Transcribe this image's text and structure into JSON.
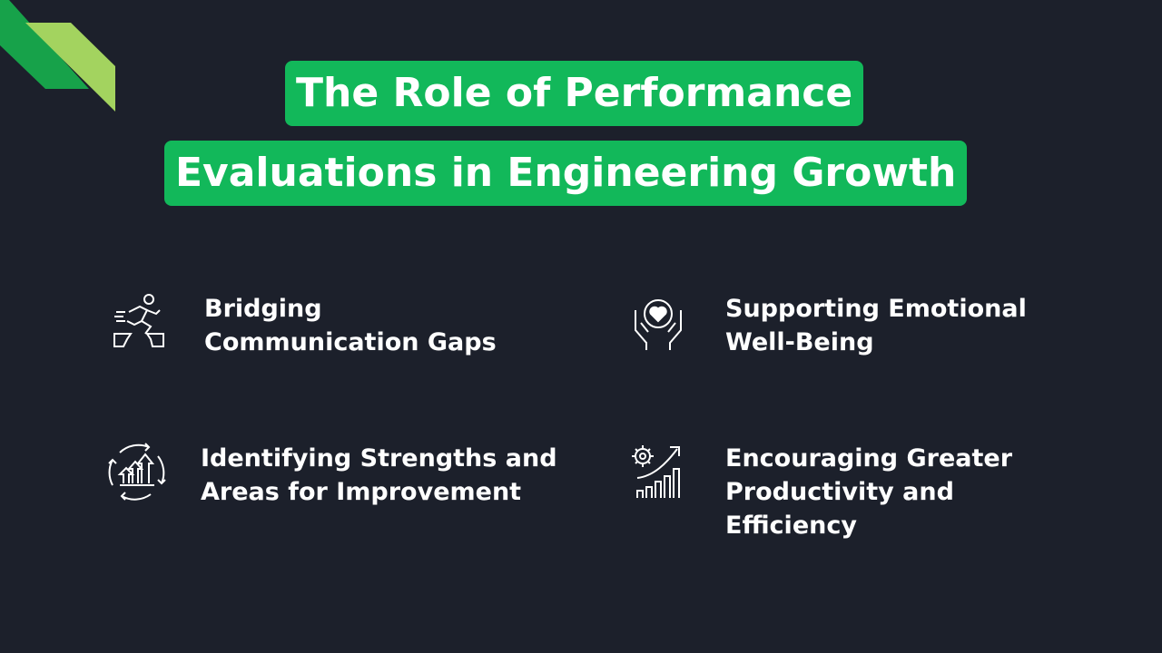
{
  "title": {
    "line1": "The Role of Performance",
    "line2": "Evaluations in Engineering Growth"
  },
  "colors": {
    "background": "#1c202b",
    "accent": "#12b85a",
    "logo_dark": "#17a24a",
    "logo_light": "#a3d35f"
  },
  "items": [
    {
      "label": "Bridging\nCommunication Gaps",
      "icon": "runner-jumping-gap-icon"
    },
    {
      "label": "Supporting Emotional\nWell-Being",
      "icon": "heart-in-hands-icon"
    },
    {
      "label": "Identifying Strengths and\nAreas for Improvement",
      "icon": "growth-arrows-cycle-icon"
    },
    {
      "label": "Encouraging Greater\nProductivity and\nEfficiency",
      "icon": "gear-growth-chart-icon"
    }
  ]
}
